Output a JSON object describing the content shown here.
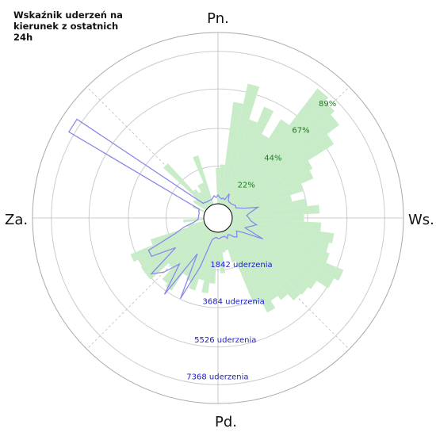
{
  "title": "Wskaźnik uderzeń na kierunek z ostatnich 24h",
  "directions": {
    "n": "Pn.",
    "e": "Ws.",
    "s": "Pd.",
    "w": "Za."
  },
  "colors": {
    "bars": "#c8ecc8",
    "line": "#8a8aea",
    "pct_text": "#1f7a1f",
    "count_text": "#1a1ad6"
  },
  "chart_data": {
    "type": "polar",
    "title": "Wskaźnik uderzeń na kierunek z ostatnich 24h",
    "grid": true,
    "sector_width_deg": 5,
    "percent_labels": [
      "22%",
      "44%",
      "67%",
      "89%"
    ],
    "count_labels": [
      "1842 uderzenia",
      "3684 uderzenia",
      "5526 uderzenia",
      "7368 uderzenia"
    ],
    "radial_max_percent": 100,
    "radial_max_count": 8240,
    "series": [
      {
        "type": "bar",
        "unit": "percent",
        "angles_deg": [
          0,
          5,
          10,
          15,
          20,
          25,
          30,
          35,
          40,
          45,
          50,
          55,
          60,
          65,
          70,
          75,
          80,
          85,
          90,
          95,
          100,
          105,
          110,
          115,
          120,
          125,
          130,
          135,
          140,
          145,
          150,
          155,
          160,
          165,
          170,
          175,
          180,
          185,
          190,
          195,
          200,
          205,
          210,
          215,
          220,
          225,
          230,
          235,
          240,
          245,
          250,
          255,
          260,
          265,
          270,
          275,
          280,
          285,
          290,
          295,
          300,
          305,
          310,
          315,
          320,
          325,
          330,
          335,
          340,
          345,
          350,
          355
        ],
        "values": [
          21,
          23,
          60,
          72,
          52,
          62,
          47,
          60,
          87,
          84,
          81,
          72,
          54,
          52,
          44,
          36,
          44,
          51,
          42,
          52,
          60,
          58,
          60,
          71,
          68,
          60,
          58,
          57,
          52,
          49,
          54,
          46,
          19,
          11,
          12,
          24,
          18,
          30,
          36,
          29,
          36,
          32,
          30,
          42,
          40,
          31,
          45,
          45,
          44,
          47,
          33,
          10,
          0,
          12,
          0,
          0,
          0,
          0,
          0,
          8,
          0,
          9,
          8,
          35,
          13,
          10,
          14,
          14,
          30,
          0,
          0,
          0
        ]
      },
      {
        "type": "line",
        "unit": "count",
        "angles_deg": [
          0,
          5,
          10,
          15,
          20,
          25,
          30,
          35,
          40,
          45,
          50,
          55,
          60,
          65,
          70,
          75,
          80,
          85,
          90,
          95,
          100,
          105,
          110,
          115,
          120,
          125,
          130,
          135,
          140,
          145,
          150,
          155,
          160,
          165,
          170,
          175,
          180,
          185,
          190,
          195,
          200,
          205,
          210,
          215,
          220,
          225,
          230,
          235,
          240,
          245,
          250,
          255,
          260,
          265,
          270,
          275,
          280,
          285,
          290,
          295,
          300,
          305,
          310,
          315,
          320,
          325,
          330,
          335,
          340,
          345,
          350,
          355
        ],
        "values": [
          420,
          300,
          250,
          300,
          250,
          600,
          300,
          250,
          250,
          250,
          300,
          350,
          300,
          450,
          700,
          1300,
          900,
          700,
          800,
          900,
          1200,
          900,
          700,
          1700,
          700,
          400,
          500,
          600,
          500,
          300,
          250,
          400,
          250,
          250,
          250,
          300,
          300,
          250,
          300,
          400,
          1800,
          3600,
          1300,
          3800,
          2200,
          3000,
          3500,
          1800,
          3000,
          3000,
          1500,
          1000,
          500,
          300,
          250,
          250,
          250,
          250,
          300,
          300,
          7600,
          7600,
          1000,
          300,
          300,
          250,
          250,
          250,
          250,
          300,
          400,
          300
        ]
      }
    ]
  }
}
